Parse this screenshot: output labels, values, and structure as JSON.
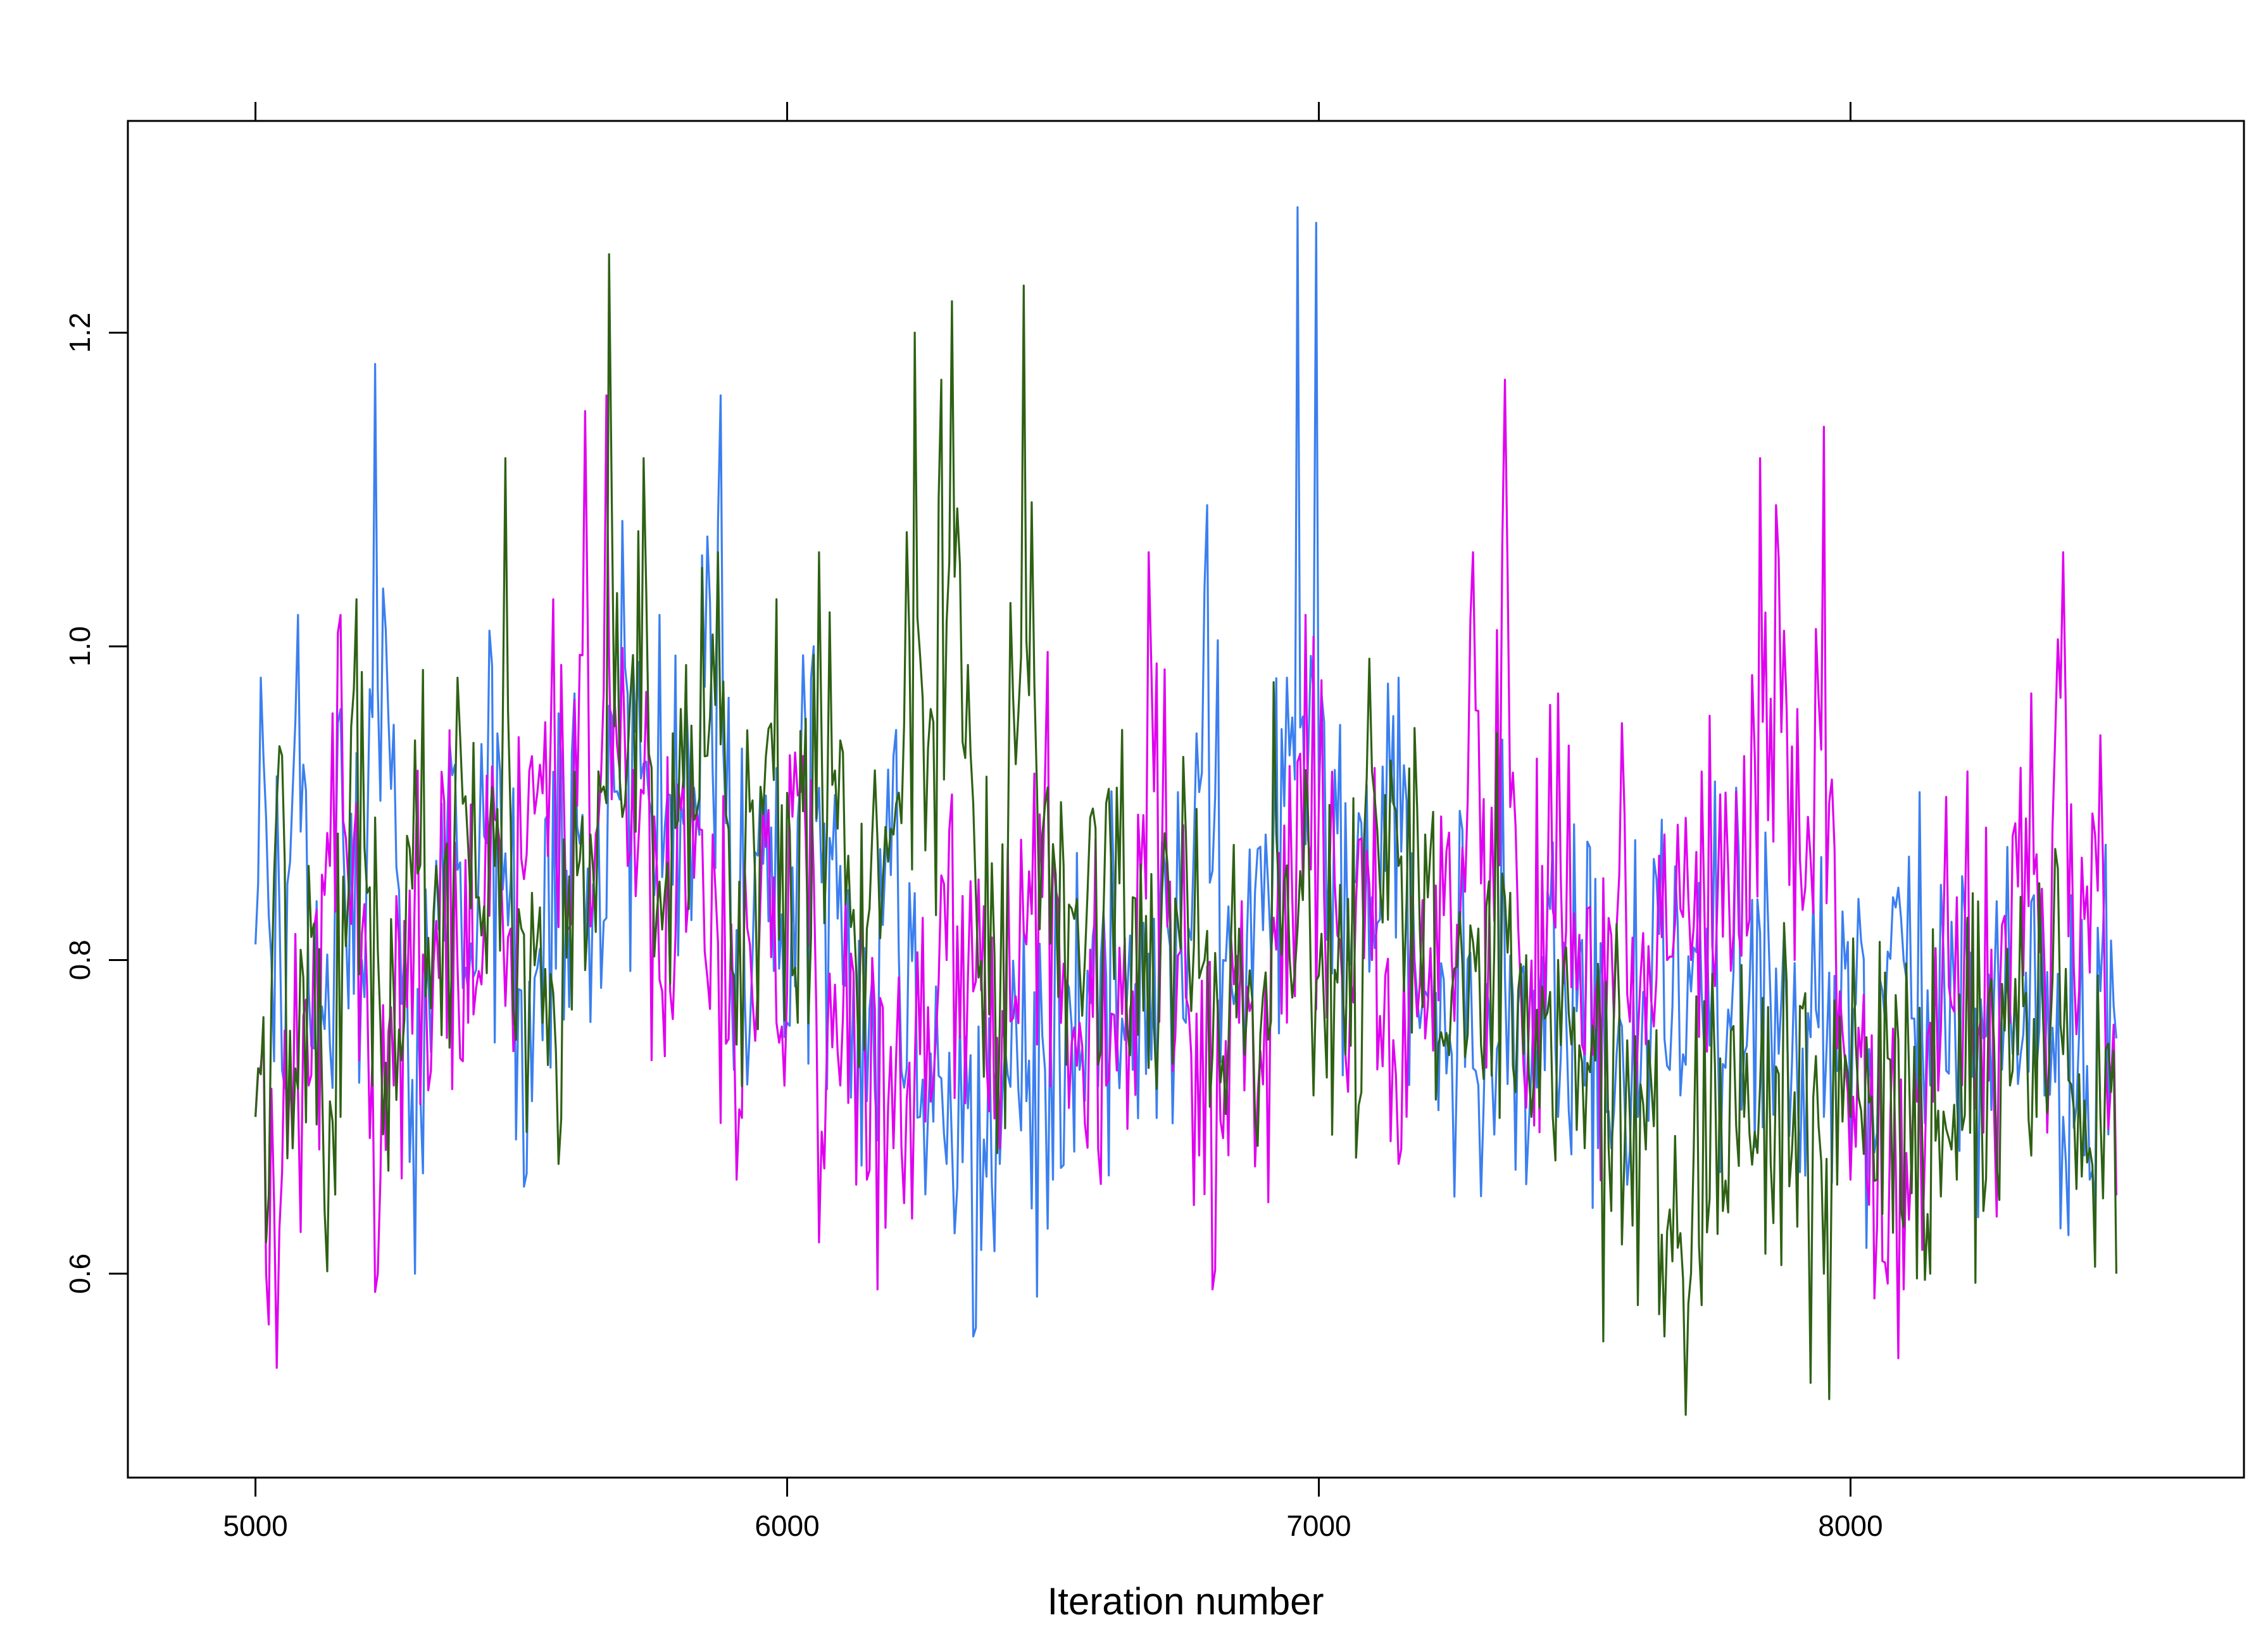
{
  "chart_data": {
    "type": "line",
    "title": "",
    "xlabel": "Iteration number",
    "ylabel": "",
    "xlim": [
      4760,
      8740
    ],
    "ylim": [
      0.47,
      1.335
    ],
    "x_ticks": [
      5000,
      6000,
      7000,
      8000
    ],
    "x_tick_labels": [
      "5000",
      "6000",
      "7000",
      "8000"
    ],
    "y_ticks": [
      0.6,
      0.8,
      1.0,
      1.2
    ],
    "y_tick_labels": [
      "0.6",
      "0.8",
      "1.0",
      "1.2"
    ],
    "grid": false,
    "legend": "none",
    "x_start": 5000,
    "x_end": 8500,
    "x_step": 50,
    "series": [
      {
        "color": "#3b7ff0",
        "points": [
          [
            5000,
            0.81
          ],
          [
            5010,
            0.98
          ],
          [
            5050,
            0.73
          ],
          [
            5080,
            1.02
          ],
          [
            5120,
            0.74
          ],
          [
            5160,
            0.96
          ],
          [
            5200,
            0.8
          ],
          [
            5225,
            1.18
          ],
          [
            5260,
            0.95
          ],
          [
            5300,
            0.6
          ],
          [
            5350,
            0.9
          ],
          [
            5400,
            0.78
          ],
          [
            5440,
            1.01
          ],
          [
            5480,
            0.85
          ],
          [
            5520,
            0.71
          ],
          [
            5560,
            0.92
          ],
          [
            5600,
            0.97
          ],
          [
            5640,
            0.83
          ],
          [
            5690,
            1.08
          ],
          [
            5720,
            0.99
          ],
          [
            5760,
            1.02
          ],
          [
            5800,
            0.9
          ],
          [
            5850,
            1.07
          ],
          [
            5875,
            1.16
          ],
          [
            5900,
            0.73
          ],
          [
            5950,
            0.91
          ],
          [
            6000,
            0.76
          ],
          [
            6050,
            1.0
          ],
          [
            6100,
            0.86
          ],
          [
            6150,
            0.71
          ],
          [
            6200,
            0.93
          ],
          [
            6250,
            0.7
          ],
          [
            6300,
            0.67
          ],
          [
            6350,
            0.56
          ],
          [
            6400,
            0.67
          ],
          [
            6450,
            0.71
          ],
          [
            6500,
            0.66
          ],
          [
            6550,
            0.73
          ],
          [
            6600,
            0.79
          ],
          [
            6650,
            0.73
          ],
          [
            6700,
            0.82
          ],
          [
            6750,
            0.76
          ],
          [
            6790,
            1.09
          ],
          [
            6820,
            0.8
          ],
          [
            6850,
            0.78
          ],
          [
            6900,
            0.88
          ],
          [
            6940,
            0.98
          ],
          [
            6960,
            1.28
          ],
          [
            6980,
            0.93
          ],
          [
            6995,
            1.27
          ],
          [
            7020,
            0.87
          ],
          [
            7050,
            0.9
          ],
          [
            7100,
            0.84
          ],
          [
            7150,
            0.98
          ],
          [
            7200,
            0.78
          ],
          [
            7250,
            0.74
          ],
          [
            7300,
            0.72
          ],
          [
            7350,
            0.79
          ],
          [
            7400,
            0.73
          ],
          [
            7450,
            0.7
          ],
          [
            7500,
            0.72
          ],
          [
            7550,
            0.68
          ],
          [
            7600,
            0.7
          ],
          [
            7650,
            0.75
          ],
          [
            7700,
            0.78
          ],
          [
            7750,
            0.76
          ],
          [
            7800,
            0.74
          ],
          [
            7850,
            0.77
          ],
          [
            7900,
            0.72
          ],
          [
            7950,
            0.7
          ],
          [
            8000,
            0.68
          ],
          [
            8050,
            0.69
          ],
          [
            8080,
            0.84
          ],
          [
            8100,
            0.8
          ],
          [
            8150,
            0.72
          ],
          [
            8200,
            0.71
          ],
          [
            8250,
            0.75
          ],
          [
            8300,
            0.77
          ],
          [
            8350,
            0.73
          ],
          [
            8400,
            0.7
          ],
          [
            8450,
            0.66
          ],
          [
            8500,
            0.75
          ]
        ]
      },
      {
        "color": "#e000f0",
        "points": [
          [
            5000,
            0.7
          ],
          [
            5020,
            0.6
          ],
          [
            5040,
            0.54
          ],
          [
            5070,
            0.68
          ],
          [
            5100,
            0.72
          ],
          [
            5140,
            0.86
          ],
          [
            5160,
            1.02
          ],
          [
            5190,
            0.9
          ],
          [
            5230,
            0.6
          ],
          [
            5260,
            0.72
          ],
          [
            5300,
            0.85
          ],
          [
            5350,
            0.92
          ],
          [
            5400,
            0.76
          ],
          [
            5450,
            0.89
          ],
          [
            5480,
            0.82
          ],
          [
            5520,
            0.93
          ],
          [
            5560,
            1.03
          ],
          [
            5590,
            0.82
          ],
          [
            5620,
            1.15
          ],
          [
            5640,
            0.88
          ],
          [
            5660,
            1.16
          ],
          [
            5700,
            0.86
          ],
          [
            5740,
            0.92
          ],
          [
            5780,
            0.78
          ],
          [
            5820,
            0.92
          ],
          [
            5860,
            0.88
          ],
          [
            5900,
            0.76
          ],
          [
            5950,
            0.84
          ],
          [
            6000,
            0.78
          ],
          [
            6030,
            0.93
          ],
          [
            6060,
            0.62
          ],
          [
            6100,
            0.72
          ],
          [
            6150,
            0.66
          ],
          [
            6170,
            0.59
          ],
          [
            6200,
            0.68
          ],
          [
            6250,
            0.74
          ],
          [
            6300,
            0.8
          ],
          [
            6350,
            0.78
          ],
          [
            6400,
            0.68
          ],
          [
            6450,
            0.81
          ],
          [
            6500,
            0.87
          ],
          [
            6550,
            0.76
          ],
          [
            6600,
            0.72
          ],
          [
            6650,
            0.78
          ],
          [
            6680,
            1.06
          ],
          [
            6720,
            0.85
          ],
          [
            6760,
            0.74
          ],
          [
            6800,
            0.59
          ],
          [
            6850,
            0.76
          ],
          [
            6900,
            0.79
          ],
          [
            6950,
            0.84
          ],
          [
            6975,
            1.02
          ],
          [
            7000,
            0.9
          ],
          [
            7050,
            0.74
          ],
          [
            7100,
            0.8
          ],
          [
            7150,
            0.67
          ],
          [
            7200,
            0.75
          ],
          [
            7250,
            0.8
          ],
          [
            7290,
            1.06
          ],
          [
            7320,
            0.82
          ],
          [
            7350,
            1.17
          ],
          [
            7380,
            0.78
          ],
          [
            7420,
            0.86
          ],
          [
            7450,
            0.97
          ],
          [
            7500,
            0.74
          ],
          [
            7560,
            0.82
          ],
          [
            7600,
            0.75
          ],
          [
            7650,
            0.88
          ],
          [
            7700,
            0.8
          ],
          [
            7750,
            0.84
          ],
          [
            7800,
            0.93
          ],
          [
            7830,
            1.12
          ],
          [
            7860,
            1.09
          ],
          [
            7900,
            0.96
          ],
          [
            7930,
            0.83
          ],
          [
            7950,
            1.14
          ],
          [
            7980,
            0.78
          ],
          [
            8000,
            0.66
          ],
          [
            8050,
            0.63
          ],
          [
            8100,
            0.59
          ],
          [
            8150,
            0.76
          ],
          [
            8200,
            0.84
          ],
          [
            8250,
            0.69
          ],
          [
            8300,
            0.76
          ],
          [
            8340,
            0.97
          ],
          [
            8370,
            0.69
          ],
          [
            8400,
            1.06
          ],
          [
            8430,
            0.78
          ],
          [
            8460,
            0.88
          ],
          [
            8500,
            0.65
          ]
        ]
      },
      {
        "color": "#2e6114",
        "points": [
          [
            5000,
            0.7
          ],
          [
            5020,
            0.62
          ],
          [
            5040,
            0.9
          ],
          [
            5070,
            0.68
          ],
          [
            5100,
            0.86
          ],
          [
            5130,
            0.64
          ],
          [
            5160,
            0.7
          ],
          [
            5190,
            1.03
          ],
          [
            5220,
            0.72
          ],
          [
            5260,
            0.78
          ],
          [
            5300,
            0.94
          ],
          [
            5340,
            0.86
          ],
          [
            5380,
            0.98
          ],
          [
            5420,
            0.84
          ],
          [
            5450,
            0.86
          ],
          [
            5470,
            1.12
          ],
          [
            5500,
            0.82
          ],
          [
            5540,
            0.76
          ],
          [
            5570,
            0.67
          ],
          [
            5600,
            0.92
          ],
          [
            5630,
            0.88
          ],
          [
            5660,
            0.9
          ],
          [
            5665,
            1.25
          ],
          [
            5700,
            0.93
          ],
          [
            5730,
            1.12
          ],
          [
            5760,
            0.85
          ],
          [
            5800,
            0.96
          ],
          [
            5840,
            1.05
          ],
          [
            5870,
            1.06
          ],
          [
            5900,
            0.79
          ],
          [
            5940,
            0.85
          ],
          [
            5980,
            1.03
          ],
          [
            6020,
            0.76
          ],
          [
            6060,
            1.06
          ],
          [
            6100,
            0.94
          ],
          [
            6150,
            0.82
          ],
          [
            6200,
            0.88
          ],
          [
            6240,
            1.2
          ],
          [
            6270,
            0.96
          ],
          [
            6290,
            1.17
          ],
          [
            6310,
            1.22
          ],
          [
            6350,
            0.9
          ],
          [
            6400,
            0.76
          ],
          [
            6445,
            1.23
          ],
          [
            6480,
            0.88
          ],
          [
            6520,
            0.86
          ],
          [
            6560,
            0.8
          ],
          [
            6600,
            0.9
          ],
          [
            6650,
            0.84
          ],
          [
            6700,
            0.78
          ],
          [
            6750,
            0.88
          ],
          [
            6800,
            0.74
          ],
          [
            6850,
            0.82
          ],
          [
            6880,
            0.7
          ],
          [
            6920,
            0.88
          ],
          [
            6960,
            0.82
          ],
          [
            7000,
            0.79
          ],
          [
            7050,
            0.74
          ],
          [
            7100,
            0.92
          ],
          [
            7150,
            0.86
          ],
          [
            7200,
            0.88
          ],
          [
            7250,
            0.78
          ],
          [
            7300,
            0.82
          ],
          [
            7350,
            0.84
          ],
          [
            7400,
            0.7
          ],
          [
            7450,
            0.8
          ],
          [
            7500,
            0.68
          ],
          [
            7550,
            0.64
          ],
          [
            7600,
            0.58
          ],
          [
            7650,
            0.56
          ],
          [
            7690,
            0.51
          ],
          [
            7720,
            0.58
          ],
          [
            7760,
            0.64
          ],
          [
            7800,
            0.7
          ],
          [
            7850,
            0.67
          ],
          [
            7900,
            0.63
          ],
          [
            7950,
            0.6
          ],
          [
            7960,
            0.52
          ],
          [
            8000,
            0.7
          ],
          [
            8050,
            0.66
          ],
          [
            8100,
            0.63
          ],
          [
            8150,
            0.6
          ],
          [
            8200,
            0.66
          ],
          [
            8250,
            0.64
          ],
          [
            8300,
            0.72
          ],
          [
            8350,
            0.7
          ],
          [
            8400,
            0.74
          ],
          [
            8450,
            0.68
          ],
          [
            8500,
            0.6
          ]
        ]
      }
    ]
  }
}
